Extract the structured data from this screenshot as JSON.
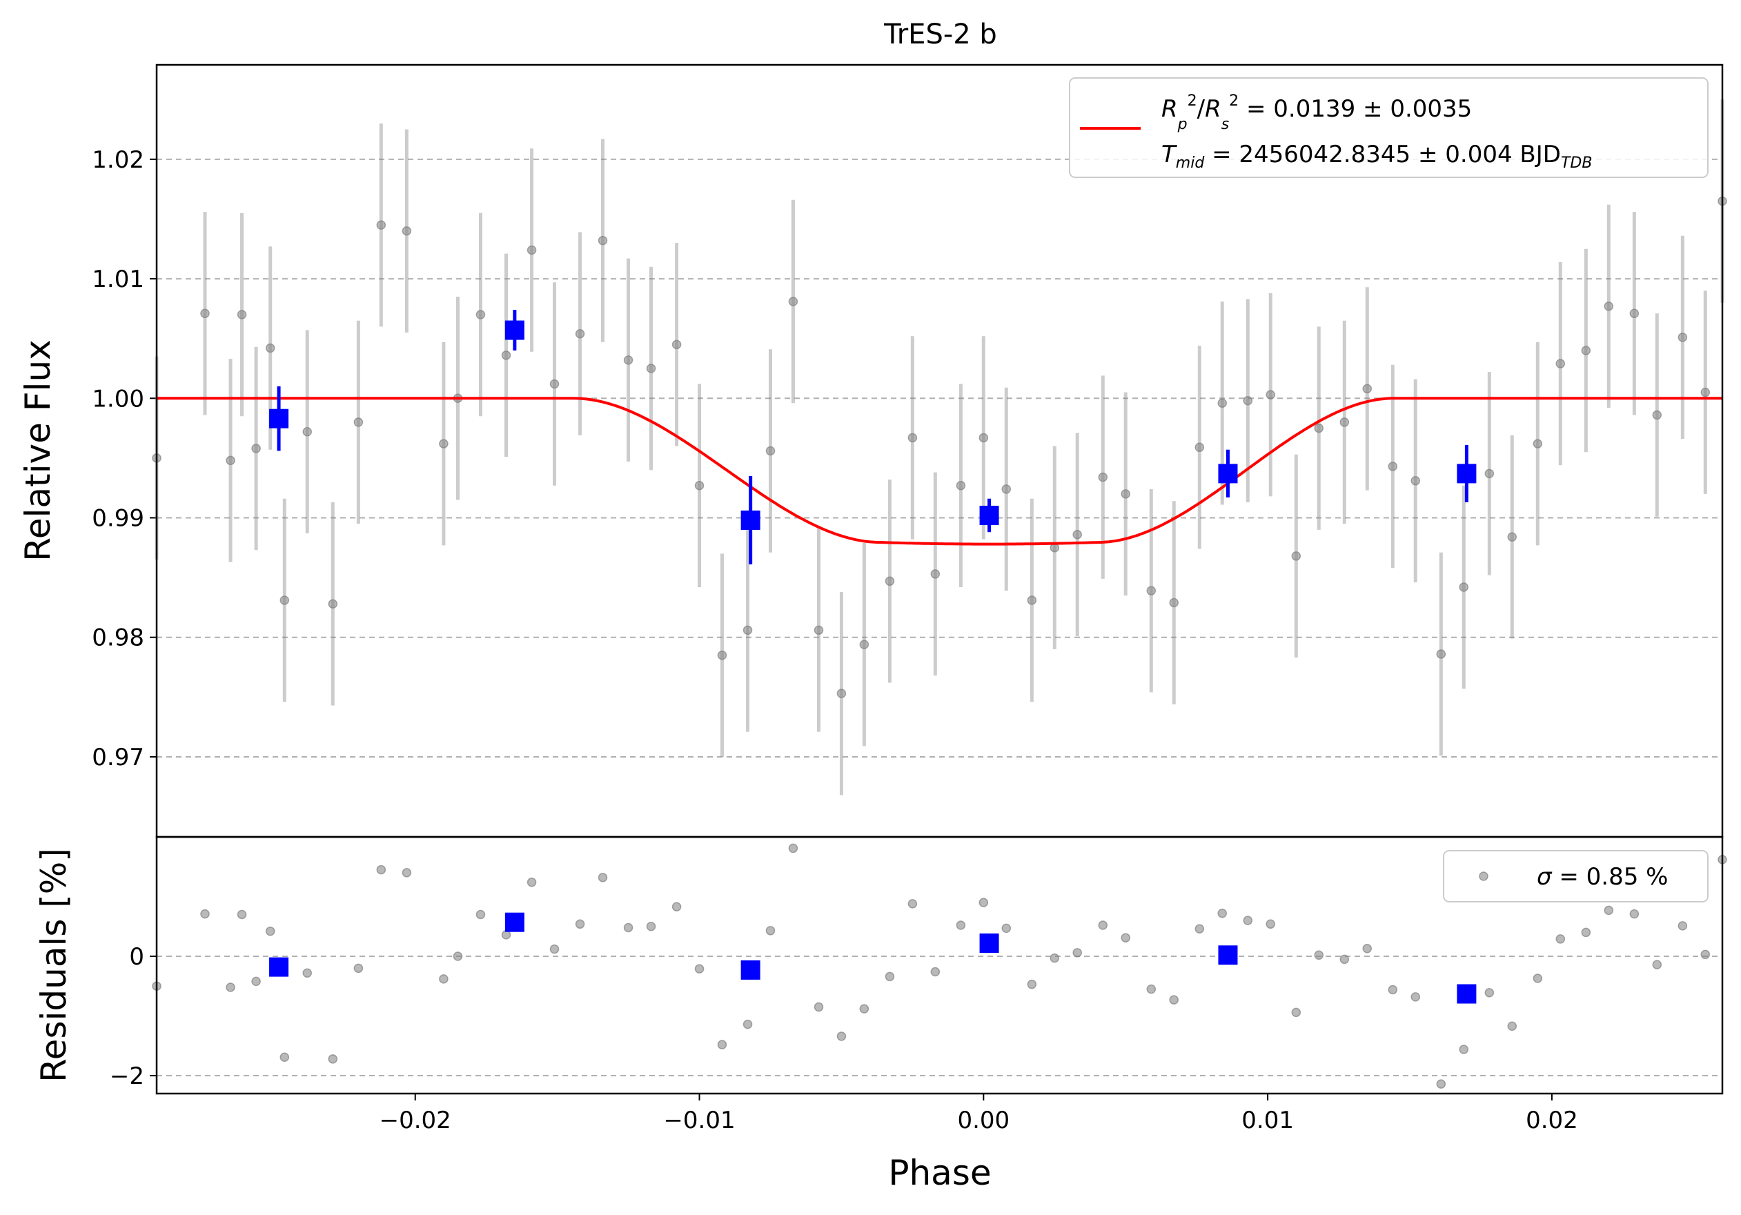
{
  "chart_data": [
    {
      "type": "scatter",
      "panel": "light-curve",
      "title": "TrES-2 b",
      "xlabel": "",
      "ylabel": "Relative Flux",
      "xlim": [
        -0.0291,
        0.026
      ],
      "ylim": [
        0.9633,
        1.0279
      ],
      "yticks": [
        0.97,
        0.98,
        0.99,
        1.0,
        1.01,
        1.02
      ],
      "ytick_labels": [
        "0.97",
        "0.98",
        "0.99",
        "1.00",
        "1.01",
        "1.02"
      ],
      "grid": "horizontal dashed",
      "legend_position": "top-right",
      "legend": {
        "line1": {
          "r": "R",
          "p": "p",
          "two": "2",
          "slash": "/",
          "s": "s",
          "rest": " = 0.0139 ± 0.0035"
        },
        "line2": {
          "t": "T",
          "mid": "mid",
          "rest": " = 2456042.8345 ± 0.004 BJD",
          "tdb": "TDB"
        }
      },
      "model": {
        "name": "model",
        "color": "#ff0000",
        "depth": 0.0122,
        "t1": -0.01444,
        "t2": -0.00362,
        "t3": 0.00402,
        "t4": 0.01444,
        "tmid": 0.0002
      },
      "raw_points": {
        "color": "#808080",
        "error": 0.0085,
        "x": [
          -0.0291,
          -0.0274,
          -0.0265,
          -0.0261,
          -0.0256,
          -0.0251,
          -0.0246,
          -0.0238,
          -0.0229,
          -0.022,
          -0.0212,
          -0.0203,
          -0.019,
          -0.0185,
          -0.0177,
          -0.0168,
          -0.0159,
          -0.0151,
          -0.0142,
          -0.0134,
          -0.0125,
          -0.0117,
          -0.0108,
          -0.01,
          -0.0092,
          -0.0083,
          -0.0075,
          -0.0067,
          -0.0058,
          -0.005,
          -0.0042,
          -0.0033,
          -0.0025,
          -0.0017,
          -0.0008,
          0.0,
          0.0008,
          0.0017,
          0.0025,
          0.0033,
          0.0042,
          0.005,
          0.0059,
          0.0067,
          0.0076,
          0.0084,
          0.0093,
          0.0101,
          0.011,
          0.0118,
          0.0127,
          0.0135,
          0.0144,
          0.0152,
          0.0161,
          0.0169,
          0.0178,
          0.0186,
          0.0195,
          0.0203,
          0.0212,
          0.022,
          0.0229,
          0.0237,
          0.0246,
          0.0254,
          0.026
        ],
        "y": [
          0.995,
          1.0071,
          0.9948,
          1.007,
          0.9958,
          1.0042,
          0.9831,
          0.9972,
          0.9828,
          0.998,
          1.0145,
          1.014,
          0.9962,
          1.0,
          1.007,
          1.0036,
          1.0124,
          1.0012,
          1.0054,
          1.0132,
          1.0032,
          1.0025,
          1.0045,
          0.9927,
          0.9785,
          0.9806,
          0.9956,
          1.0081,
          0.9806,
          0.9753,
          0.9794,
          0.9847,
          0.9967,
          0.9853,
          0.9927,
          0.9967,
          0.9924,
          0.9831,
          0.9875,
          0.9886,
          0.9934,
          0.992,
          0.9839,
          0.9829,
          0.9959,
          0.9996,
          0.9998,
          1.0003,
          0.9868,
          0.9975,
          0.998,
          1.0008,
          0.9943,
          0.9931,
          0.9786,
          0.9842,
          0.9937,
          0.9884,
          0.9962,
          1.0029,
          1.004,
          1.0077,
          1.0071,
          0.9986,
          1.0051,
          1.0005,
          1.0165
        ]
      },
      "binned_points": {
        "color": "#0000ff",
        "x": [
          -0.0248,
          -0.0165,
          -0.0082,
          0.0002,
          0.0086,
          0.017
        ],
        "y": [
          0.9983,
          1.0057,
          0.9898,
          0.9902,
          0.9937,
          0.9937
        ],
        "yerr": [
          0.0027,
          0.0017,
          0.0037,
          0.0014,
          0.002,
          0.0024
        ]
      }
    },
    {
      "type": "scatter",
      "panel": "residuals",
      "xlabel": "Phase",
      "ylabel": "Residuals [%]",
      "xlim": [
        -0.0291,
        0.026
      ],
      "ylim": [
        -2.3,
        2.0
      ],
      "xticks": [
        -0.02,
        -0.01,
        0.0,
        0.01,
        0.02
      ],
      "xtick_labels": [
        "−0.02",
        "−0.01",
        "0.00",
        "0.01",
        "0.02"
      ],
      "yticks": [
        -2,
        0
      ],
      "ytick_labels": [
        "−2",
        "0"
      ],
      "grid": "horizontal dashed",
      "legend_position": "top-right",
      "legend": {
        "sigma": "σ",
        "rest": " = 0.85 %"
      },
      "raw_points": {
        "color": "#808080",
        "y": [
          -0.5,
          0.71,
          -0.52,
          0.7,
          -0.42,
          0.42,
          -1.69,
          -0.28,
          -1.72,
          -0.2,
          1.45,
          1.4,
          -0.38,
          0.0,
          0.7,
          0.36,
          1.24,
          0.12,
          0.54,
          1.32,
          0.48,
          0.5,
          0.83,
          -0.21,
          -1.48,
          -1.14,
          0.43,
          1.81,
          -0.85,
          -1.34,
          -0.88,
          -0.34,
          0.88,
          -0.26,
          0.52,
          0.9,
          0.47,
          -0.47,
          -0.03,
          0.06,
          0.52,
          0.31,
          -0.55,
          -0.73,
          0.46,
          0.72,
          0.6,
          0.54,
          -0.94,
          0.02,
          -0.05,
          0.13,
          -0.56,
          -0.68,
          -2.14,
          -1.56,
          -0.61,
          -1.17,
          -0.37,
          0.29,
          0.4,
          0.77,
          0.71,
          -0.14,
          0.51,
          0.03,
          1.62
        ]
      },
      "binned_points": {
        "color": "#0000ff",
        "y": [
          -0.18,
          0.57,
          -0.23,
          0.22,
          0.02,
          -0.63
        ]
      }
    }
  ]
}
